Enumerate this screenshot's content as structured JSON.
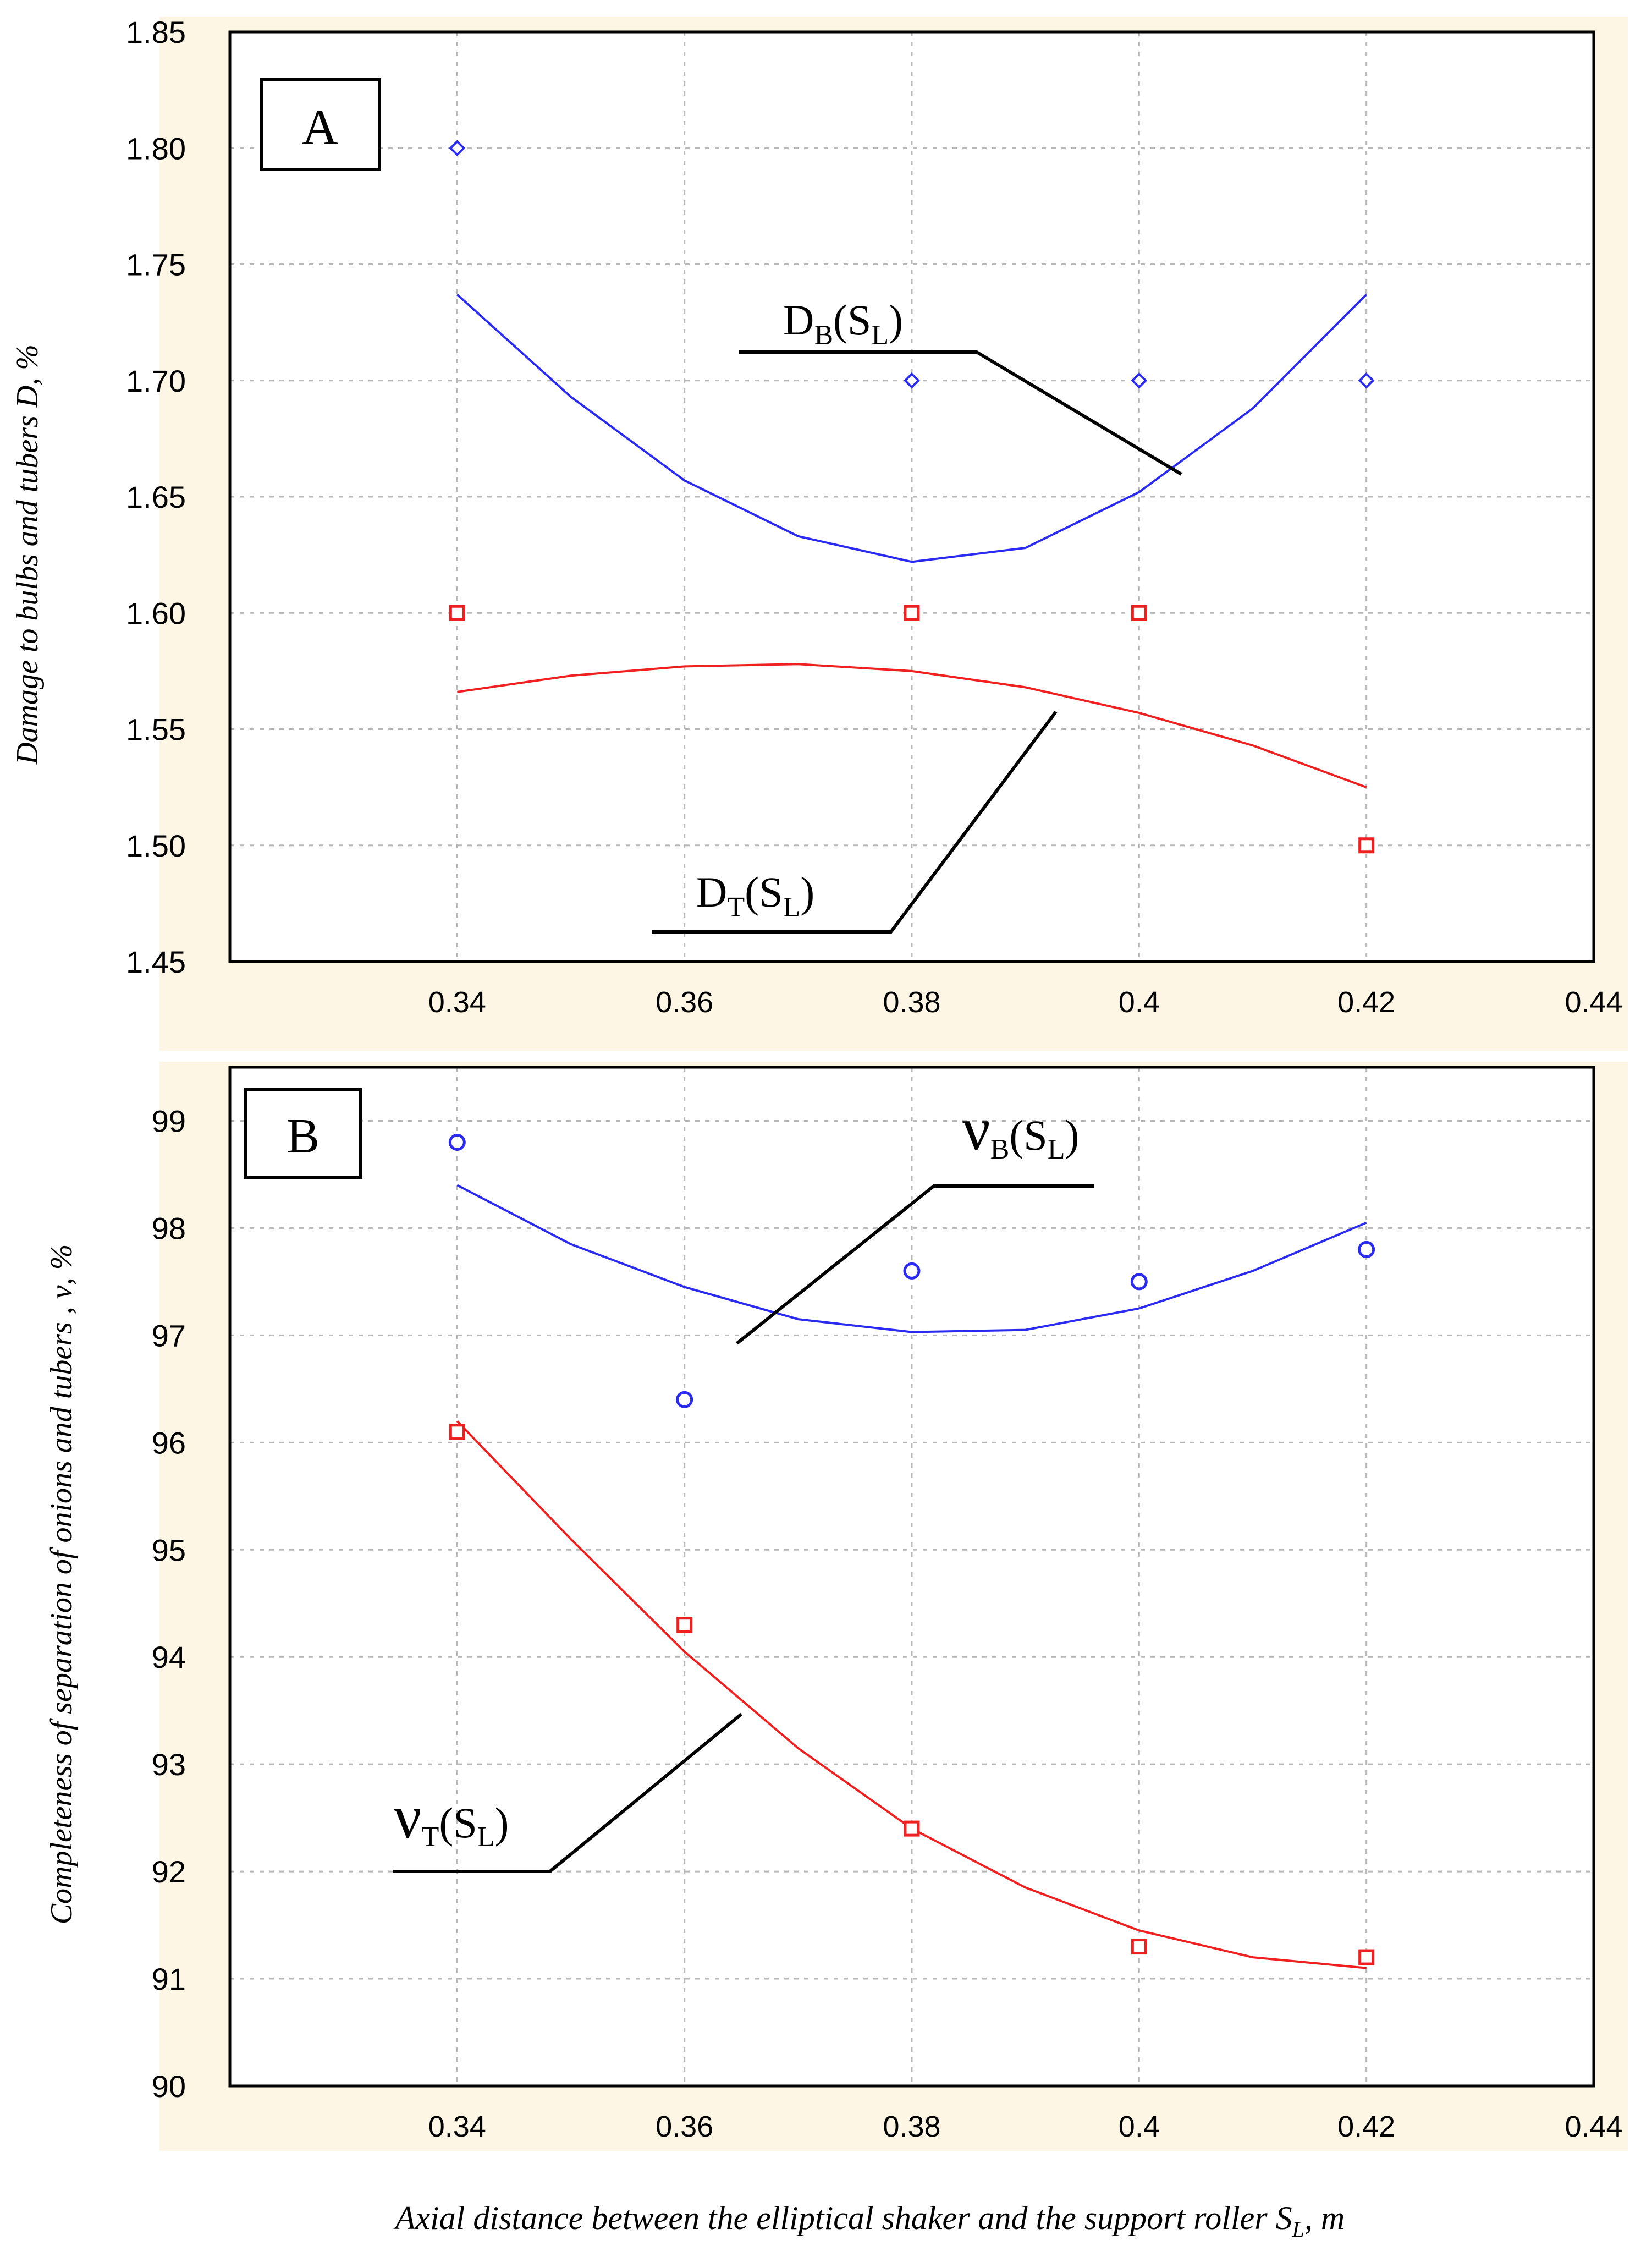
{
  "chart_data": [
    {
      "type": "scatter",
      "panel_label": "A",
      "title": "",
      "ylabel": "Damage to bulbs and tubers D, %",
      "xlabel": "",
      "xlim": [
        0.32,
        0.44
      ],
      "ylim": [
        1.45,
        1.85
      ],
      "x_ticks": [
        0.34,
        0.36,
        0.38,
        0.4,
        0.42,
        0.44
      ],
      "x_tick_labels": [
        "0.34",
        "0.36",
        "0.38",
        "0.4",
        "0.42",
        "0.44"
      ],
      "y_ticks": [
        1.45,
        1.5,
        1.55,
        1.6,
        1.65,
        1.7,
        1.75,
        1.8,
        1.85
      ],
      "y_tick_labels": [
        "1.45",
        "1.50",
        "1.55",
        "1.60",
        "1.65",
        "1.70",
        "1.75",
        "1.80",
        "1.85"
      ],
      "grid": true,
      "series": [
        {
          "name": "D_B(S_L)",
          "label_main": "D",
          "label_sub1": "B",
          "label_mid": "(S",
          "label_sub2": "L",
          "label_end": ")",
          "color": "#2a2af0",
          "marker": "diamond",
          "points": [
            [
              0.34,
              1.8
            ],
            [
              0.38,
              1.7
            ],
            [
              0.4,
              1.7
            ],
            [
              0.42,
              1.7
            ]
          ],
          "fit": [
            [
              0.34,
              1.737
            ],
            [
              0.35,
              1.693
            ],
            [
              0.36,
              1.657
            ],
            [
              0.37,
              1.633
            ],
            [
              0.38,
              1.622
            ],
            [
              0.39,
              1.628
            ],
            [
              0.4,
              1.652
            ],
            [
              0.41,
              1.688
            ],
            [
              0.42,
              1.737
            ]
          ]
        },
        {
          "name": "D_T(S_L)",
          "label_main": "D",
          "label_sub1": "T",
          "label_mid": "(S",
          "label_sub2": "L",
          "label_end": ")",
          "color": "#ee2020",
          "marker": "square",
          "points": [
            [
              0.34,
              1.6
            ],
            [
              0.38,
              1.6
            ],
            [
              0.4,
              1.6
            ],
            [
              0.42,
              1.5
            ]
          ],
          "fit": [
            [
              0.34,
              1.566
            ],
            [
              0.35,
              1.573
            ],
            [
              0.36,
              1.577
            ],
            [
              0.37,
              1.578
            ],
            [
              0.38,
              1.575
            ],
            [
              0.39,
              1.568
            ],
            [
              0.4,
              1.557
            ],
            [
              0.41,
              1.543
            ],
            [
              0.42,
              1.525
            ]
          ]
        }
      ]
    },
    {
      "type": "scatter",
      "panel_label": "B",
      "title": "",
      "ylabel": "Completeness of separation of onions and tubers , ν, %",
      "xlabel": "Axial distance between the elliptical shaker and the support roller S",
      "xlabel_sub": "L",
      "xlabel_end": ", m",
      "xlim": [
        0.32,
        0.44
      ],
      "ylim": [
        90,
        99.5
      ],
      "x_ticks": [
        0.34,
        0.36,
        0.38,
        0.4,
        0.42,
        0.44
      ],
      "x_tick_labels": [
        "0.34",
        "0.36",
        "0.38",
        "0.4",
        "0.42",
        "0.44"
      ],
      "y_ticks": [
        90,
        91,
        92,
        93,
        94,
        95,
        96,
        97,
        98,
        99
      ],
      "y_tick_labels": [
        "90",
        "91",
        "92",
        "93",
        "94",
        "95",
        "96",
        "97",
        "98",
        "99"
      ],
      "grid": true,
      "series": [
        {
          "name": "ν_B(S_L)",
          "label_main": "ν",
          "label_sub1": "B",
          "label_mid": "(S",
          "label_sub2": "L",
          "label_end": ")",
          "color": "#2a2af0",
          "marker": "circle",
          "points": [
            [
              0.34,
              98.8
            ],
            [
              0.36,
              96.4
            ],
            [
              0.38,
              97.6
            ],
            [
              0.4,
              97.5
            ],
            [
              0.42,
              97.8
            ]
          ],
          "fit": [
            [
              0.34,
              98.4
            ],
            [
              0.35,
              97.85
            ],
            [
              0.36,
              97.45
            ],
            [
              0.37,
              97.15
            ],
            [
              0.38,
              97.03
            ],
            [
              0.39,
              97.05
            ],
            [
              0.4,
              97.25
            ],
            [
              0.41,
              97.6
            ],
            [
              0.42,
              98.05
            ]
          ]
        },
        {
          "name": "ν_T(S_L)",
          "label_main": "ν",
          "label_sub1": "T",
          "label_mid": "(S",
          "label_sub2": "L",
          "label_end": ")",
          "color": "#ee2020",
          "marker": "square",
          "points": [
            [
              0.34,
              96.1
            ],
            [
              0.36,
              94.3
            ],
            [
              0.38,
              92.4
            ],
            [
              0.4,
              91.3
            ],
            [
              0.42,
              91.2
            ]
          ],
          "fit": [
            [
              0.34,
              96.2
            ],
            [
              0.35,
              95.1
            ],
            [
              0.36,
              94.05
            ],
            [
              0.37,
              93.15
            ],
            [
              0.38,
              92.4
            ],
            [
              0.39,
              91.85
            ],
            [
              0.4,
              91.45
            ],
            [
              0.41,
              91.2
            ],
            [
              0.42,
              91.1
            ]
          ]
        }
      ]
    }
  ]
}
